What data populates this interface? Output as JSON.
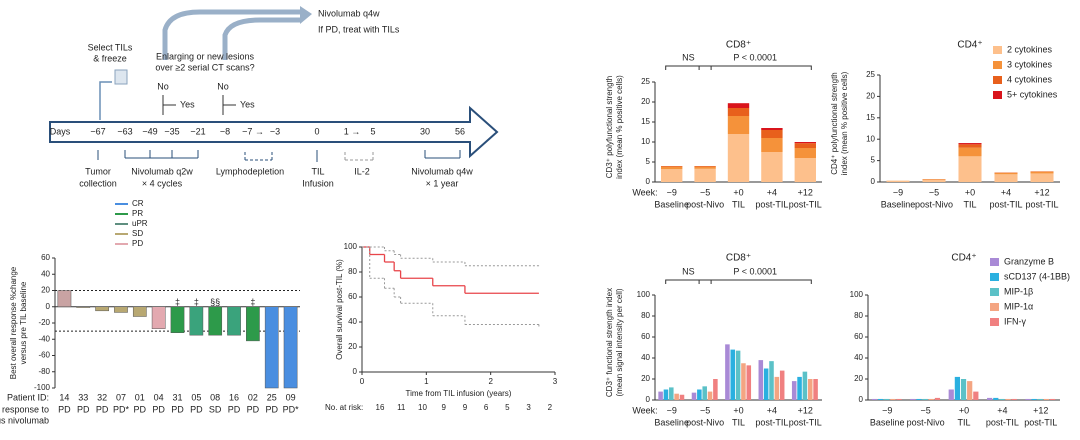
{
  "timeline": {
    "days_label": "Days",
    "days": [
      "−67",
      "−63",
      "−49",
      "−35",
      "−21",
      "−8",
      "−7 →",
      "−3",
      "0",
      "1 →",
      "5",
      "30",
      "56"
    ],
    "select": [
      "Select TILs",
      "& freeze"
    ],
    "question": [
      "Enlarging or new lesions",
      "over ≥2 serial CT scans?"
    ],
    "decisions": [
      {
        "no": "No",
        "yes": "Yes"
      },
      {
        "no": "No",
        "yes": "Yes"
      }
    ],
    "nivo_top": "Nivolumab q4w",
    "if_pd": "If PD, treat with TILs",
    "phases": [
      [
        "Tumor",
        "collection"
      ],
      [
        "Nivolumab q2w",
        "× 4 cycles"
      ],
      [
        "Lymphodepletion"
      ],
      [
        "TIL",
        "Infusion"
      ],
      [
        "IL-2"
      ],
      [
        "Nivolumab q4w",
        "× 1 year"
      ]
    ]
  },
  "chart_data": [
    {
      "type": "waterfall",
      "ylabel": [
        "Best overall response %change",
        "versus pre TIL baseline"
      ],
      "id_label": "Patient ID:",
      "response_label": [
        "Last response to",
        "previous nivolumab"
      ],
      "categories": [
        "14",
        "33",
        "32",
        "07",
        "01",
        "04",
        "31",
        "05",
        "08",
        "16",
        "02",
        "25",
        "09"
      ],
      "responses": [
        "PD",
        "PD",
        "PD",
        "PD*",
        "PD",
        "PD",
        "PD",
        "PD",
        "SD",
        "PD",
        "PD",
        "PD",
        "PD*"
      ],
      "values": [
        20,
        -1,
        -5,
        -7,
        -12,
        -27,
        -32,
        -35,
        -35,
        -35,
        -42,
        -100,
        -100
      ],
      "colors": [
        "#c9a3a3",
        "#b8a872",
        "#b8a872",
        "#b8a872",
        "#b8a872",
        "#e3a9b0",
        "#2d9a4a",
        "#3aa37c",
        "#2d9a4a",
        "#3aa37c",
        "#2d9a4a",
        "#4a8ee0",
        "#4a8ee0"
      ],
      "legend": [
        {
          "name": "CR",
          "color": "#4a8ee0"
        },
        {
          "name": "PR",
          "color": "#2d9a4a"
        },
        {
          "name": "uPR",
          "color": "#5f8f80"
        },
        {
          "name": "SD",
          "color": "#b8a872"
        },
        {
          "name": "PD",
          "color": "#e3a9b0"
        }
      ],
      "annotations": [
        {
          "text": "‡",
          "patient": "31"
        },
        {
          "text": "‡",
          "patient": "05"
        },
        {
          "text": "§§",
          "patient": "08"
        },
        {
          "text": "‡",
          "patient": "02"
        }
      ],
      "reference_lines": [
        20,
        -30
      ],
      "ylim": [
        -100,
        60
      ],
      "yticks": [
        -100,
        -80,
        -60,
        -40,
        -20,
        0,
        20,
        40,
        60
      ]
    },
    {
      "type": "km",
      "ylabel": "Overall survival post-TIL (%)",
      "xlabel": "Time from TIL infusion (years)",
      "x": [
        0,
        0.12,
        0.35,
        0.5,
        0.6,
        1.1,
        1.6,
        2.75
      ],
      "values": [
        100,
        94,
        88,
        81,
        75,
        69,
        63,
        63
      ],
      "upper": [
        100,
        100,
        97,
        94,
        91,
        88,
        85,
        85
      ],
      "lower": [
        100,
        75,
        67,
        60,
        55,
        45,
        38,
        35
      ],
      "color": "#e8454a",
      "xlim": [
        0,
        3
      ],
      "xticks": [
        0,
        1,
        2,
        3
      ],
      "ylim": [
        0,
        100
      ],
      "yticks": [
        0,
        20,
        40,
        60,
        80,
        100
      ],
      "at_risk_label": "No. at risk:",
      "at_risk_x": [
        0,
        0.375,
        0.75,
        1.125,
        1.5,
        1.875,
        2.25,
        2.625,
        3
      ],
      "at_risk": [
        16,
        11,
        10,
        9,
        9,
        6,
        5,
        3,
        2
      ]
    },
    {
      "type": "stacked",
      "title": "CD8⁺",
      "ylabel": [
        "CD3⁺ polyfunctional strength",
        "index (mean % positive cells)"
      ],
      "week_label": "Week:",
      "weeks": [
        "−9",
        "−5",
        "+0",
        "+4",
        "+12"
      ],
      "categories": [
        "Baseline",
        "post-Nivo",
        "TIL",
        "post-TIL",
        "post-TIL"
      ],
      "brackets": [
        {
          "text": "NS",
          "from": 0,
          "to": 1
        },
        {
          "text": "P < 0.0001",
          "from": 1,
          "to": 4
        }
      ],
      "series": [
        {
          "name": "2 cytokines",
          "color": "#fdc08c",
          "values": [
            3.2,
            3.3,
            12,
            7.5,
            6
          ]
        },
        {
          "name": "3 cytokines",
          "color": "#f5923a",
          "values": [
            0.6,
            0.5,
            4.5,
            3.5,
            2.5
          ]
        },
        {
          "name": "4 cytokines",
          "color": "#e8601c",
          "values": [
            0.2,
            0.2,
            2,
            2,
            1.2
          ]
        },
        {
          "name": "5+ cytokines",
          "color": "#d9141b",
          "values": [
            0,
            0,
            1.2,
            0.5,
            0.3
          ]
        }
      ],
      "ylim": [
        0,
        25
      ],
      "yticks": [
        0,
        5,
        10,
        15,
        20,
        25
      ]
    },
    {
      "type": "stacked",
      "title": "CD4⁺",
      "ylabel": [
        "CD4⁺ polyfunctional strength",
        "index (mean % positive cells)"
      ],
      "weeks": [
        "−9",
        "−5",
        "+0",
        "+4",
        "+12"
      ],
      "categories": [
        "Baseline",
        "post-Nivo",
        "TIL",
        "post-TIL",
        "post-TIL"
      ],
      "legend": "top-right",
      "series": [
        {
          "name": "2 cytokines",
          "color": "#fdc08c",
          "values": [
            0.25,
            0.5,
            6,
            1.8,
            2
          ]
        },
        {
          "name": "3 cytokines",
          "color": "#f5923a",
          "values": [
            0.05,
            0.15,
            2,
            0.3,
            0.4
          ]
        },
        {
          "name": "4 cytokines",
          "color": "#e8601c",
          "values": [
            0,
            0.05,
            0.8,
            0.1,
            0.1
          ]
        },
        {
          "name": "5+ cytokines",
          "color": "#d9141b",
          "values": [
            0,
            0,
            0.3,
            0,
            0
          ]
        }
      ],
      "ylim": [
        0,
        25
      ],
      "yticks": [
        0,
        5,
        10,
        15,
        20,
        25
      ]
    },
    {
      "type": "grouped",
      "title": "CD8⁺",
      "ylabel": [
        "CD3⁺ functional strength index",
        "(mean signal intensity per cell)"
      ],
      "week_label": "Week:",
      "weeks": [
        "−9",
        "−5",
        "+0",
        "+4",
        "+12"
      ],
      "categories": [
        "Baseline",
        "post-Nivo",
        "TIL",
        "post-TIL",
        "post-TIL"
      ],
      "brackets": [
        {
          "text": "NS",
          "from": 0,
          "to": 1
        },
        {
          "text": "P < 0.0001",
          "from": 1,
          "to": 4
        }
      ],
      "series": [
        {
          "name": "Granzyme B",
          "color": "#a98ad6",
          "values": [
            8,
            7,
            53,
            38,
            18
          ]
        },
        {
          "name": "sCD137 (4-1BB)",
          "color": "#2ab0e0",
          "values": [
            10,
            10,
            48,
            30,
            22
          ]
        },
        {
          "name": "MIP-1β",
          "color": "#5bc1c7",
          "values": [
            12,
            13,
            47,
            37,
            27
          ]
        },
        {
          "name": "MIP-1α",
          "color": "#f4a582",
          "values": [
            6,
            8,
            35,
            22,
            20
          ]
        },
        {
          "name": "IFN-γ",
          "color": "#f08080",
          "values": [
            5,
            20,
            33,
            28,
            20
          ]
        }
      ],
      "ylim": [
        0,
        100
      ],
      "yticks": [
        0,
        20,
        40,
        60,
        80,
        100
      ]
    },
    {
      "type": "grouped",
      "title": "CD4⁺",
      "weeks": [
        "−9",
        "−5",
        "+0",
        "+4",
        "+12"
      ],
      "categories": [
        "Baseline",
        "post-Nivo",
        "TIL",
        "post-TIL",
        "post-TIL"
      ],
      "legend": "top-left",
      "series": [
        {
          "name": "Granzyme B",
          "color": "#a98ad6",
          "values": [
            1,
            1,
            10,
            2,
            1
          ]
        },
        {
          "name": "sCD137 (4-1BB)",
          "color": "#2ab0e0",
          "values": [
            1,
            1,
            22,
            2,
            1
          ]
        },
        {
          "name": "MIP-1β",
          "color": "#5bc1c7",
          "values": [
            1,
            1,
            20,
            1,
            1
          ]
        },
        {
          "name": "MIP-1α",
          "color": "#f4a582",
          "values": [
            1,
            1,
            18,
            1,
            1
          ]
        },
        {
          "name": "IFN-γ",
          "color": "#f08080",
          "values": [
            1,
            2,
            8,
            1,
            1
          ]
        }
      ],
      "ylim": [
        0,
        100
      ],
      "yticks": [
        0,
        20,
        40,
        60,
        80,
        100
      ]
    }
  ]
}
